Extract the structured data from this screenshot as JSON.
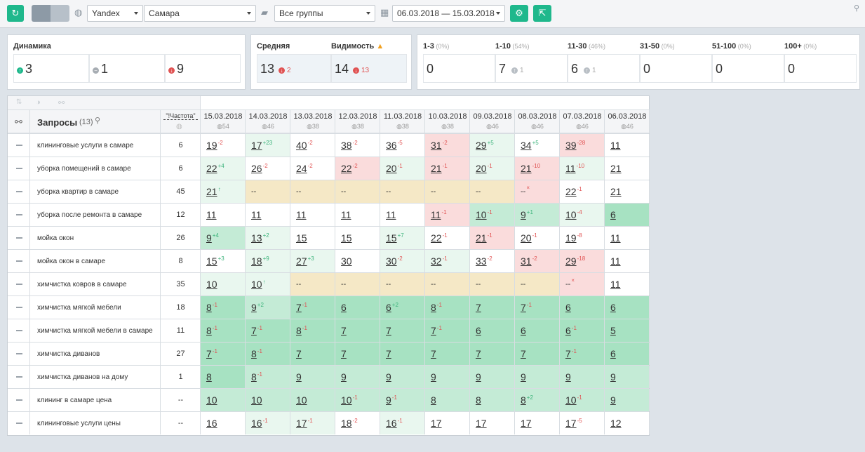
{
  "toolbar": {
    "engine": "Yandex",
    "region": "Самара",
    "group": "Все группы",
    "date_range": "06.03.2018 — 15.03.2018"
  },
  "dynamics": {
    "title": "Динамика",
    "up": "3",
    "same": "1",
    "down": "9"
  },
  "average": {
    "title": "Средняя",
    "value": "13",
    "delta": "2"
  },
  "visibility": {
    "title": "Видимость",
    "value": "14",
    "delta": "13"
  },
  "ranges": [
    {
      "label": "1-3",
      "pct": "(0%)",
      "value": "0",
      "delta": ""
    },
    {
      "label": "1-10",
      "pct": "(54%)",
      "value": "7",
      "delta": "1"
    },
    {
      "label": "11-30",
      "pct": "(46%)",
      "value": "6",
      "delta": "1"
    },
    {
      "label": "31-50",
      "pct": "(0%)",
      "value": "0",
      "delta": ""
    },
    {
      "label": "51-100",
      "pct": "(0%)",
      "value": "0",
      "delta": ""
    },
    {
      "label": "100+",
      "pct": "(0%)",
      "value": "0",
      "delta": ""
    }
  ],
  "table": {
    "queries_label": "Запросы",
    "queries_count": "(13)",
    "freq_label": "\"!Частота\"",
    "dates": [
      {
        "date": "15.03.2018",
        "vis": "54"
      },
      {
        "date": "14.03.2018",
        "vis": "46"
      },
      {
        "date": "13.03.2018",
        "vis": "38"
      },
      {
        "date": "12.03.2018",
        "vis": "38"
      },
      {
        "date": "11.03.2018",
        "vis": "38"
      },
      {
        "date": "10.03.2018",
        "vis": "38"
      },
      {
        "date": "09.03.2018",
        "vis": "46"
      },
      {
        "date": "08.03.2018",
        "vis": "46"
      },
      {
        "date": "07.03.2018",
        "vis": "46"
      },
      {
        "date": "06.03.2018",
        "vis": "46"
      }
    ],
    "rows": [
      {
        "q": "клининговые услуги в самаре",
        "f": "6",
        "cells": [
          [
            "19",
            "-2",
            "w"
          ],
          [
            "17",
            "+23",
            "lg"
          ],
          [
            "40",
            "-2",
            "w"
          ],
          [
            "38",
            "-2",
            "w"
          ],
          [
            "36",
            "-5",
            "w"
          ],
          [
            "31",
            "-2",
            "r"
          ],
          [
            "29",
            "+5",
            "lg"
          ],
          [
            "34",
            "+5",
            "w"
          ],
          [
            "39",
            "-28",
            "r"
          ],
          [
            "11",
            "",
            "w"
          ]
        ]
      },
      {
        "q": "уборка помещений в самаре",
        "f": "6",
        "cells": [
          [
            "22",
            "+4",
            "lg"
          ],
          [
            "26",
            "-2",
            "w"
          ],
          [
            "24",
            "-2",
            "w"
          ],
          [
            "22",
            "-2",
            "r"
          ],
          [
            "20",
            "-1",
            "lg"
          ],
          [
            "21",
            "-1",
            "r"
          ],
          [
            "20",
            "-1",
            "lg"
          ],
          [
            "21",
            "-10",
            "r"
          ],
          [
            "11",
            "-10",
            "lg"
          ],
          [
            "21",
            "",
            "w"
          ]
        ]
      },
      {
        "q": "уборка квартир в самаре",
        "f": "45",
        "cells": [
          [
            "21",
            "↑",
            "lg"
          ],
          [
            "--",
            "",
            "y"
          ],
          [
            "--",
            "",
            "y"
          ],
          [
            "--",
            "",
            "y"
          ],
          [
            "--",
            "",
            "y"
          ],
          [
            "--",
            "",
            "y"
          ],
          [
            "--",
            "",
            "y"
          ],
          [
            "--",
            "×",
            "r"
          ],
          [
            "22",
            "-1",
            "w"
          ],
          [
            "21",
            "",
            "w"
          ]
        ]
      },
      {
        "q": "уборка после ремонта в самаре",
        "f": "12",
        "cells": [
          [
            "11",
            "",
            "w"
          ],
          [
            "11",
            "",
            "w"
          ],
          [
            "11",
            "",
            "w"
          ],
          [
            "11",
            "",
            "w"
          ],
          [
            "11",
            "",
            "w"
          ],
          [
            "11",
            "-1",
            "r"
          ],
          [
            "10",
            "-1",
            "mg"
          ],
          [
            "9",
            "+1",
            "mg"
          ],
          [
            "10",
            "-4",
            "lg"
          ],
          [
            "6",
            "",
            "g"
          ]
        ]
      },
      {
        "q": "мойка окон",
        "f": "26",
        "cells": [
          [
            "9",
            "+4",
            "mg"
          ],
          [
            "13",
            "+2",
            "lg"
          ],
          [
            "15",
            "",
            "w"
          ],
          [
            "15",
            "",
            "w"
          ],
          [
            "15",
            "+7",
            "lg"
          ],
          [
            "22",
            "-1",
            "w"
          ],
          [
            "21",
            "-1",
            "r"
          ],
          [
            "20",
            "-1",
            "w"
          ],
          [
            "19",
            "-8",
            "w"
          ],
          [
            "11",
            "",
            "w"
          ]
        ]
      },
      {
        "q": "мойка окон в самаре",
        "f": "8",
        "cells": [
          [
            "15",
            "+3",
            "w"
          ],
          [
            "18",
            "+9",
            "lg"
          ],
          [
            "27",
            "+3",
            "lg"
          ],
          [
            "30",
            "",
            "w"
          ],
          [
            "30",
            "-2",
            "lg"
          ],
          [
            "32",
            "-1",
            "lg"
          ],
          [
            "33",
            "-2",
            "w"
          ],
          [
            "31",
            "-2",
            "r"
          ],
          [
            "29",
            "-18",
            "r"
          ],
          [
            "11",
            "",
            "w"
          ]
        ]
      },
      {
        "q": "химчистка ковров в самаре",
        "f": "35",
        "cells": [
          [
            "10",
            "",
            "lg"
          ],
          [
            "10",
            "↑",
            "lg"
          ],
          [
            "--",
            "",
            "y"
          ],
          [
            "--",
            "",
            "y"
          ],
          [
            "--",
            "",
            "y"
          ],
          [
            "--",
            "",
            "y"
          ],
          [
            "--",
            "",
            "y"
          ],
          [
            "--",
            "",
            "y"
          ],
          [
            "--",
            "×",
            "r"
          ],
          [
            "11",
            "",
            "w"
          ]
        ]
      },
      {
        "q": "химчистка мягкой мебели",
        "f": "18",
        "cells": [
          [
            "8",
            "-1",
            "g"
          ],
          [
            "9",
            "+2",
            "mg"
          ],
          [
            "7",
            "-1",
            "g"
          ],
          [
            "6",
            "",
            "g"
          ],
          [
            "6",
            "+2",
            "g"
          ],
          [
            "8",
            "-1",
            "g"
          ],
          [
            "7",
            "",
            "g"
          ],
          [
            "7",
            "-1",
            "g"
          ],
          [
            "6",
            "",
            "g"
          ],
          [
            "6",
            "",
            "g"
          ]
        ]
      },
      {
        "q": "химчистка мягкой мебели в самаре",
        "f": "11",
        "cells": [
          [
            "8",
            "-1",
            "g"
          ],
          [
            "7",
            "-1",
            "g"
          ],
          [
            "8",
            "-1",
            "g"
          ],
          [
            "7",
            "",
            "g"
          ],
          [
            "7",
            "",
            "g"
          ],
          [
            "7",
            "-1",
            "g"
          ],
          [
            "6",
            "",
            "g"
          ],
          [
            "6",
            "",
            "g"
          ],
          [
            "6",
            "-1",
            "g"
          ],
          [
            "5",
            "",
            "g"
          ]
        ]
      },
      {
        "q": "химчистка диванов",
        "f": "27",
        "cells": [
          [
            "7",
            "-1",
            "g"
          ],
          [
            "8",
            "-1",
            "g"
          ],
          [
            "7",
            "",
            "g"
          ],
          [
            "7",
            "",
            "g"
          ],
          [
            "7",
            "",
            "g"
          ],
          [
            "7",
            "",
            "g"
          ],
          [
            "7",
            "",
            "g"
          ],
          [
            "7",
            "",
            "g"
          ],
          [
            "7",
            "-1",
            "g"
          ],
          [
            "6",
            "",
            "g"
          ]
        ]
      },
      {
        "q": "химчистка диванов на дому",
        "f": "1",
        "cells": [
          [
            "8",
            "",
            "g"
          ],
          [
            "8",
            "-1",
            "mg"
          ],
          [
            "9",
            "",
            "mg"
          ],
          [
            "9",
            "",
            "mg"
          ],
          [
            "9",
            "",
            "mg"
          ],
          [
            "9",
            "",
            "mg"
          ],
          [
            "9",
            "",
            "mg"
          ],
          [
            "9",
            "",
            "mg"
          ],
          [
            "9",
            "",
            "mg"
          ],
          [
            "9",
            "",
            "mg"
          ]
        ]
      },
      {
        "q": "клининг в самаре цена",
        "f": "--",
        "cells": [
          [
            "10",
            "",
            "mg"
          ],
          [
            "10",
            "",
            "mg"
          ],
          [
            "10",
            "",
            "mg"
          ],
          [
            "10",
            "-1",
            "mg"
          ],
          [
            "9",
            "-1",
            "mg"
          ],
          [
            "8",
            "",
            "mg"
          ],
          [
            "8",
            "",
            "mg"
          ],
          [
            "8",
            "+2",
            "mg"
          ],
          [
            "10",
            "-1",
            "mg"
          ],
          [
            "9",
            "",
            "mg"
          ]
        ]
      },
      {
        "q": "клининговые услуги цены",
        "f": "--",
        "cells": [
          [
            "16",
            "",
            "w"
          ],
          [
            "16",
            "-1",
            "lg"
          ],
          [
            "17",
            "-1",
            "lg"
          ],
          [
            "18",
            "-2",
            "w"
          ],
          [
            "16",
            "-1",
            "lg"
          ],
          [
            "17",
            "",
            "w"
          ],
          [
            "17",
            "",
            "w"
          ],
          [
            "17",
            "",
            "w"
          ],
          [
            "17",
            "-5",
            "w"
          ],
          [
            "12",
            "",
            "w"
          ]
        ]
      }
    ]
  }
}
